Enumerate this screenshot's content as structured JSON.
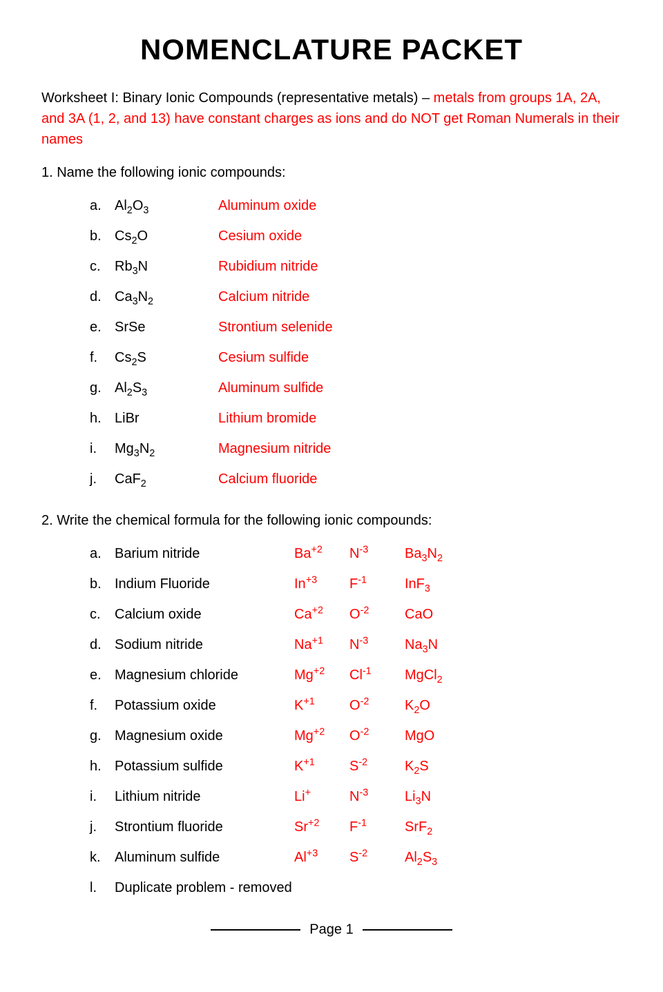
{
  "title": "Nomenclature Packet",
  "intro_plain_1": "Worksheet I: Binary Ionic Compounds (representative metals) – ",
  "intro_red": "metals from groups 1A, 2A, and 3A (1, 2, and 13) have constant charges as ions and do NOT get Roman Numerals in their names",
  "q1_heading": "1.  Name the following ionic compounds:",
  "q1_items": [
    {
      "letter": "a.",
      "formula_html": "Al<sub>2</sub>O<sub>3</sub>",
      "answer": "Aluminum oxide"
    },
    {
      "letter": "b.",
      "formula_html": "Cs<sub>2</sub>O",
      "answer": "Cesium oxide"
    },
    {
      "letter": "c.",
      "formula_html": "Rb<sub>3</sub>N",
      "answer": "Rubidium nitride"
    },
    {
      "letter": "d.",
      "formula_html": "Ca<sub>3</sub>N<sub>2</sub>",
      "answer": "Calcium nitride"
    },
    {
      "letter": "e.",
      "formula_html": "SrSe",
      "answer": "Strontium selenide"
    },
    {
      "letter": "f.",
      "formula_html": "Cs<sub>2</sub>S",
      "answer": "Cesium sulfide"
    },
    {
      "letter": "g.",
      "formula_html": "Al<sub>2</sub>S<sub>3</sub>",
      "answer": "Aluminum sulfide"
    },
    {
      "letter": "h.",
      "formula_html": "LiBr",
      "answer": "Lithium bromide"
    },
    {
      "letter": "i.",
      "formula_html": "Mg<sub>3</sub>N<sub>2</sub>",
      "answer": "Magnesium nitride"
    },
    {
      "letter": "j.",
      "formula_html": "CaF<sub>2</sub>",
      "answer": "Calcium fluoride"
    }
  ],
  "q2_heading": "2.  Write the chemical formula for the following ionic compounds:",
  "q2_items": [
    {
      "letter": "a.",
      "name": "Barium nitride",
      "cation_html": "Ba<sup>+2</sup>",
      "anion_html": "N<sup>-3</sup>",
      "result_html": "Ba<sub>3</sub>N<sub>2</sub>"
    },
    {
      "letter": "b.",
      "name": "Indium Fluoride",
      "cation_html": "In<sup>+3</sup>",
      "anion_html": "F<sup>-1</sup>",
      "result_html": "InF<sub>3</sub>"
    },
    {
      "letter": "c.",
      "name": "Calcium oxide",
      "cation_html": "Ca<sup>+2</sup>",
      "anion_html": "O<sup>-2</sup>",
      "result_html": "CaO"
    },
    {
      "letter": "d.",
      "name": "Sodium nitride",
      "cation_html": "Na<sup>+1</sup>",
      "anion_html": "N<sup>-3</sup>",
      "result_html": "Na<sub>3</sub>N"
    },
    {
      "letter": "e.",
      "name": "Magnesium chloride",
      "cation_html": "Mg<sup>+2</sup>",
      "anion_html": "Cl<sup>-1</sup>",
      "result_html": "MgCl<sub>2</sub>"
    },
    {
      "letter": "f.",
      "name": "Potassium oxide",
      "cation_html": "K<sup>+1</sup>",
      "anion_html": "O<sup>-2</sup>",
      "result_html": "K<sub>2</sub>O"
    },
    {
      "letter": "g.",
      "name": "Magnesium oxide",
      "cation_html": "Mg<sup>+2</sup>",
      "anion_html": "O<sup>-2</sup>",
      "result_html": "MgO"
    },
    {
      "letter": "h.",
      "name": "Potassium sulfide",
      "cation_html": "K<sup>+1</sup>",
      "anion_html": "S<sup>-2</sup>",
      "result_html": "K<sub>2</sub>S"
    },
    {
      "letter": "i.",
      "name": "Lithium nitride",
      "cation_html": "Li<sup>+</sup>",
      "anion_html": "N<sup>-3</sup>",
      "result_html": "Li<sub>3</sub>N"
    },
    {
      "letter": "j.",
      "name": "Strontium fluoride",
      "cation_html": "Sr<sup>+2</sup>",
      "anion_html": "F<sup>-1</sup>",
      "result_html": "SrF<sub>2</sub>"
    },
    {
      "letter": "k.",
      "name": "Aluminum sulfide",
      "cation_html": "Al<sup>+3</sup>",
      "anion_html": "S<sup>-2</sup>",
      "result_html": "Al<sub>2</sub>S<sub>3</sub>"
    },
    {
      "letter": "l.",
      "name": "Duplicate problem - removed",
      "cation_html": "",
      "anion_html": "",
      "result_html": ""
    }
  ],
  "footer_page": "Page 1",
  "colors": {
    "text": "#000000",
    "answer_red": "#ff0000",
    "background": "#ffffff"
  },
  "typography": {
    "title_font": "Impact",
    "body_font": "Comic Sans MS",
    "body_fontsize_pt": 15,
    "title_fontsize_pt": 30
  }
}
